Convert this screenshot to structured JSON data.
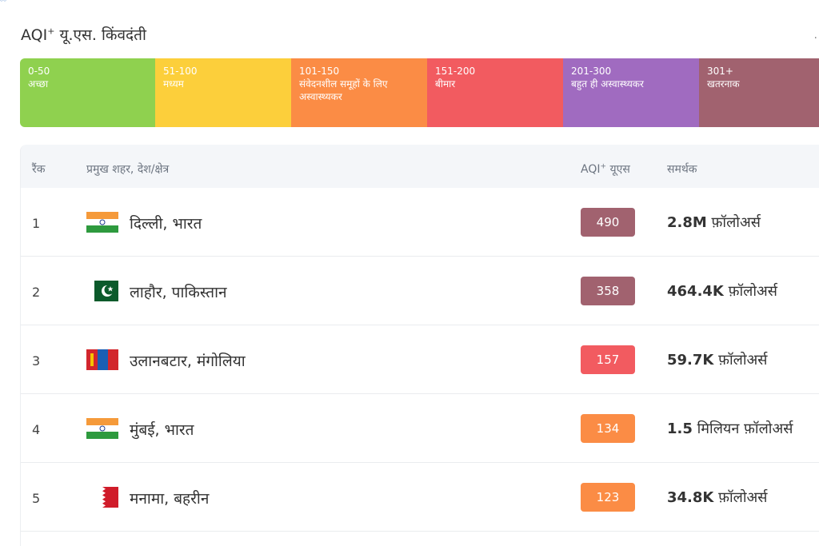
{
  "header": {
    "title_prefix": "AQI",
    "title_sup": "+",
    "title_suffix": " यू.एस. किंवदंती"
  },
  "legend": [
    {
      "range": "0-50",
      "label": "अच्छा",
      "color": "#8fd14f"
    },
    {
      "range": "51-100",
      "label": "मध्यम",
      "color": "#fccf3b"
    },
    {
      "range": "101-150",
      "label": "संवेदनशील समूहों के लिए अस्वास्थ्यकर",
      "color": "#fb8c45"
    },
    {
      "range": "151-200",
      "label": "बीमार",
      "color": "#f25b60"
    },
    {
      "range": "201-300",
      "label": "बहुत ही अस्वास्थ्यकर",
      "color": "#a06bc0"
    },
    {
      "range": "301+",
      "label": "खतरनाक",
      "color": "#a1626f"
    }
  ],
  "table": {
    "columns": {
      "rank": "रैंक",
      "city": "प्रमुख शहर, देश/क्षेत्र",
      "aqi_prefix": "AQI",
      "aqi_sup": "+",
      "aqi_suffix": " यूएस",
      "followers": "समर्थक"
    },
    "rows": [
      {
        "rank": "1",
        "flag": "india-flag",
        "city": "दिल्ली, भारत",
        "aqi": "490",
        "aqi_color": "#a1626f",
        "followers_num": "2.8M",
        "followers_text": " फ़ॉलोअर्स"
      },
      {
        "rank": "2",
        "flag": "pakistan-flag",
        "city": "लाहौर, पाकिस्तान",
        "aqi": "358",
        "aqi_color": "#a1626f",
        "followers_num": "464.4K",
        "followers_text": " फ़ॉलोअर्स"
      },
      {
        "rank": "3",
        "flag": "mongolia-flag",
        "city": "उलानबटार, मंगोलिया",
        "aqi": "157",
        "aqi_color": "#f25b60",
        "followers_num": "59.7K",
        "followers_text": " फ़ॉलोअर्स"
      },
      {
        "rank": "4",
        "flag": "india-flag",
        "city": "मुंबई, भारत",
        "aqi": "134",
        "aqi_color": "#fb8c45",
        "followers_num": "1.5",
        "followers_text": " मिलियन फ़ॉलोअर्स"
      },
      {
        "rank": "5",
        "flag": "bahrain-flag",
        "city": "मनामा, बहरीन",
        "aqi": "123",
        "aqi_color": "#fb8c45",
        "followers_num": "34.8K",
        "followers_text": " फ़ॉलोअर्स"
      }
    ]
  }
}
